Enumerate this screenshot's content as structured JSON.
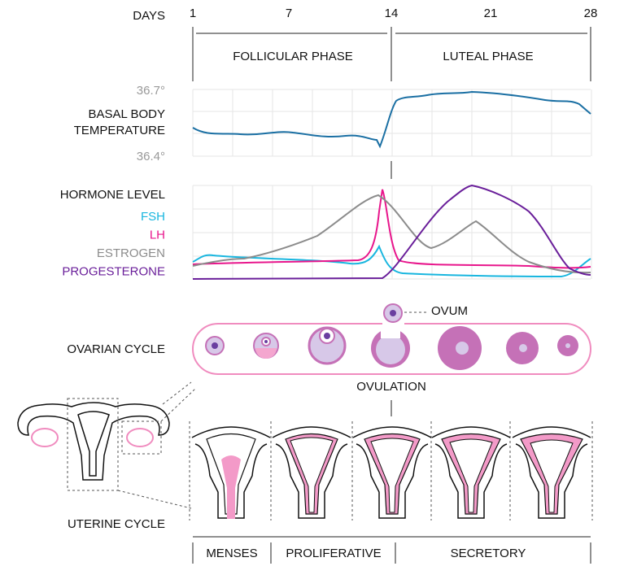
{
  "header": {
    "days_label": "DAYS",
    "days": [
      "1",
      "7",
      "14",
      "21",
      "28"
    ],
    "phases": [
      "FOLLICULAR PHASE",
      "LUTEAL PHASE"
    ]
  },
  "temperature": {
    "label": [
      "BASAL BODY",
      "TEMPERATURE"
    ],
    "max": "36.7°",
    "min": "36.4°",
    "color": "#1a6fa3"
  },
  "hormones": {
    "label": "HORMONE LEVEL",
    "legend": [
      {
        "name": "FSH",
        "color": "#19b6df"
      },
      {
        "name": "LH",
        "color": "#e8168c"
      },
      {
        "name": "ESTROGEN",
        "color": "#8c8c8c"
      },
      {
        "name": "PROGESTERONE",
        "color": "#6a1f9a"
      }
    ]
  },
  "ovarian": {
    "label": "OVARIAN CYCLE",
    "ovum": "OVUM",
    "ovulation": "OVULATION"
  },
  "uterine": {
    "label": "UTERINE CYCLE",
    "phases": [
      "MENSES",
      "PROLIFERATIVE",
      "SECRETORY"
    ]
  }
}
